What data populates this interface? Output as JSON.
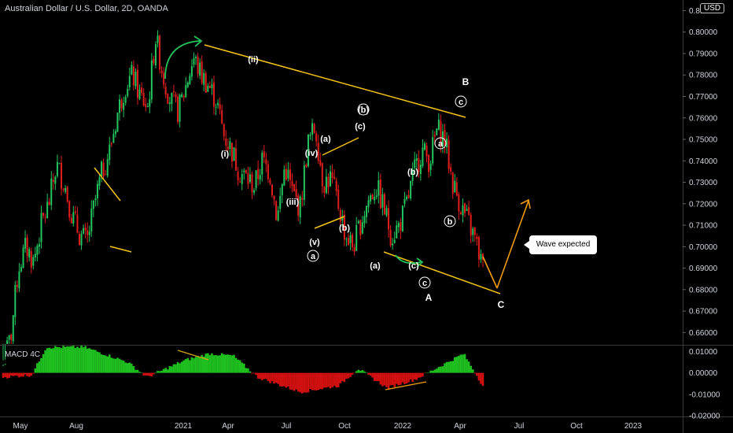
{
  "header": {
    "title": "Australian Dollar / U.S. Dollar, 2D, OANDA",
    "currency_badge": "USD"
  },
  "macd_label": "MACD 4C",
  "callout": "Wave expected",
  "colors": {
    "up": "#22c55e",
    "down": "#e11d1d",
    "trend": "#f5c518",
    "arrow_orange": "#f39c12",
    "arrow_green": "#22c55e",
    "macd_up": "#1fbf1f",
    "macd_down": "#d01010"
  },
  "chart_data": [
    {
      "type": "candlestick",
      "title": "Australian Dollar / U.S. Dollar, 2D, OANDA",
      "x_ticks": [
        "May",
        "Aug",
        "2021",
        "Apr",
        "Jul",
        "Oct",
        "2022",
        "Apr",
        "Jul",
        "Oct",
        "2023"
      ],
      "y_ticks": [
        "0.81000",
        "0.80000",
        "0.79000",
        "0.78000",
        "0.77000",
        "0.76000",
        "0.75000",
        "0.74000",
        "0.73000",
        "0.72000",
        "0.71000",
        "0.70000",
        "0.69000",
        "0.68000",
        "0.67000",
        "0.66000"
      ],
      "ylim": [
        0.655,
        0.812
      ],
      "path_prices": [
        0.645,
        0.658,
        0.69,
        0.7,
        0.693,
        0.71,
        0.72,
        0.738,
        0.73,
        0.715,
        0.706,
        0.702,
        0.72,
        0.735,
        0.745,
        0.762,
        0.775,
        0.78,
        0.77,
        0.765,
        0.798,
        0.78,
        0.768,
        0.763,
        0.775,
        0.788,
        0.78,
        0.775,
        0.768,
        0.752,
        0.745,
        0.735,
        0.732,
        0.728,
        0.74,
        0.735,
        0.713,
        0.738,
        0.725,
        0.718,
        0.748,
        0.756,
        0.73,
        0.732,
        0.72,
        0.705,
        0.7,
        0.712,
        0.722,
        0.728,
        0.718,
        0.705,
        0.71,
        0.72,
        0.735,
        0.745,
        0.74,
        0.755,
        0.75,
        0.73,
        0.72,
        0.712,
        0.703,
        0.69
      ],
      "wave_labels": [
        "(ii)",
        "(i)",
        "(iv)",
        "(iii)",
        "(v)",
        "(a)",
        "(b)",
        "(c)",
        "(b)",
        "(a)",
        "(c)",
        "(b)",
        "a",
        "b",
        "c",
        "b",
        "a",
        "b",
        "c",
        "c",
        "B",
        "A",
        "C"
      ],
      "trendlines": [
        "upper channel",
        "lower channel",
        "wedge",
        "wave (a)-(c)"
      ]
    },
    {
      "type": "bar",
      "title": "MACD 4C",
      "y_ticks": [
        "0.01000",
        "0.00000",
        "-0.01000",
        "-0.02000"
      ],
      "ylim": [
        -0.02,
        0.012
      ],
      "envelope": [
        [
          0,
          -0.002
        ],
        [
          0.06,
          -0.001
        ],
        [
          0.09,
          0.012
        ],
        [
          0.17,
          0.012
        ],
        [
          0.26,
          0.005
        ],
        [
          0.3,
          -0.002
        ],
        [
          0.38,
          0.006
        ],
        [
          0.43,
          0.009
        ],
        [
          0.48,
          0.008
        ],
        [
          0.53,
          -0.002
        ],
        [
          0.62,
          -0.009
        ],
        [
          0.7,
          -0.006
        ],
        [
          0.74,
          0.002
        ],
        [
          0.8,
          -0.007
        ],
        [
          0.86,
          -0.003
        ],
        [
          0.91,
          0.003
        ],
        [
          0.96,
          0.009
        ],
        [
          1.0,
          -0.006
        ]
      ]
    }
  ],
  "time_axis": [
    "May",
    "Aug",
    "2021",
    "Apr",
    "Jul",
    "Oct",
    "2022",
    "Apr",
    "Jul",
    "Oct",
    "2023"
  ]
}
